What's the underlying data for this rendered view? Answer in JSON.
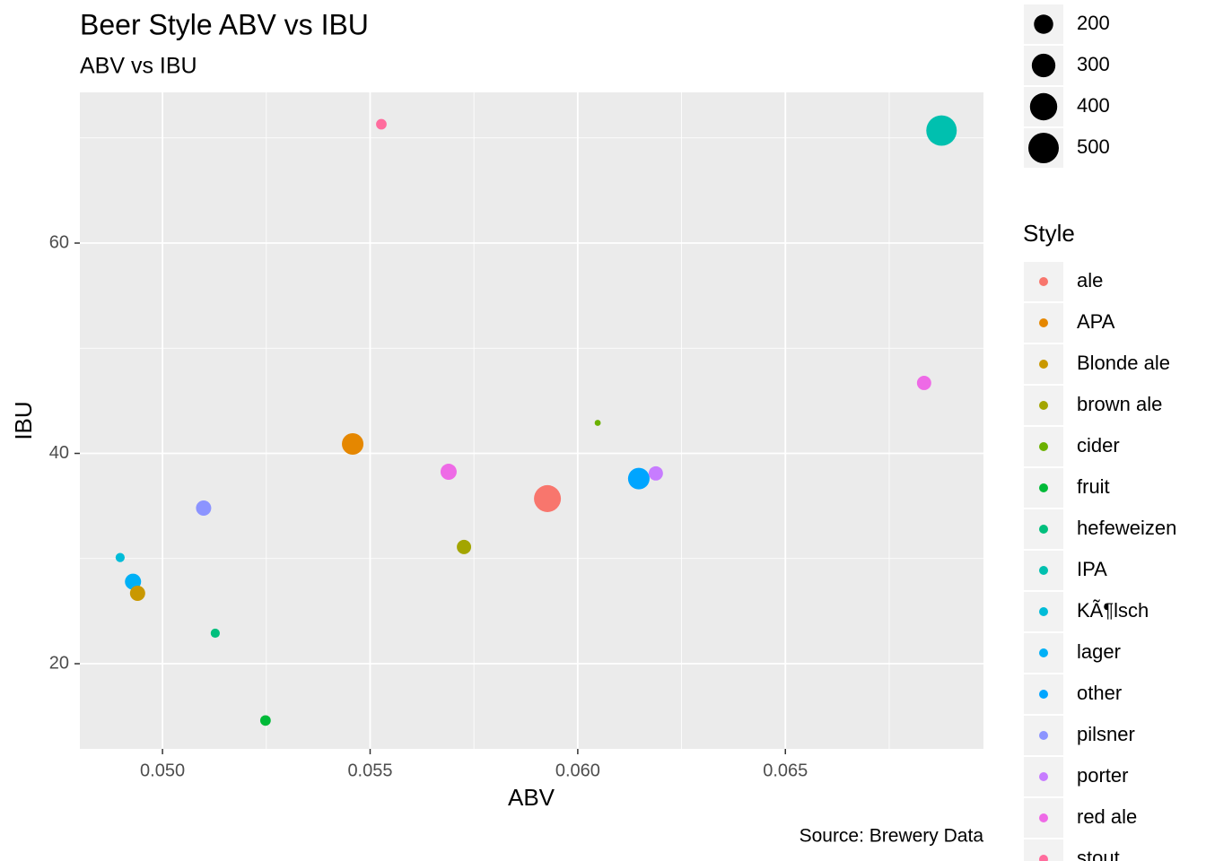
{
  "chart_data": {
    "type": "scatter",
    "title": "Beer Style ABV vs IBU",
    "subtitle": "ABV vs IBU",
    "caption": "Source: Brewery Data",
    "x_label": "ABV",
    "y_label": "IBU",
    "legend_title": "Style",
    "xlim": [
      0.04801,
      0.06977
    ],
    "ylim": [
      11.9,
      74.33
    ],
    "xticks": [
      {
        "value": 0.05,
        "label": "0.050"
      },
      {
        "value": 0.055,
        "label": "0.055"
      },
      {
        "value": 0.06,
        "label": "0.060"
      },
      {
        "value": 0.065,
        "label": "0.065"
      }
    ],
    "yticks": [
      20,
      40,
      60
    ],
    "xminorticks": [
      0.0525,
      0.0575,
      0.0625,
      0.0675
    ],
    "yminorticks": [
      30,
      50,
      70
    ],
    "grid": true,
    "legend": "right",
    "size_ticks": [
      200,
      300,
      400,
      500
    ],
    "series": [
      {
        "name": "ale",
        "color": "#F8766D",
        "x": [
          0.05927
        ],
        "y": [
          35.7
        ],
        "size": [
          390
        ]
      },
      {
        "name": "APA",
        "color": "#E58700",
        "x": [
          0.05458
        ],
        "y": [
          40.9
        ],
        "size": [
          250
        ]
      },
      {
        "name": "Blonde ale",
        "color": "#C99800",
        "x": [
          0.0494
        ],
        "y": [
          26.7
        ],
        "size": [
          125
        ]
      },
      {
        "name": "brown ale",
        "color": "#A3A500",
        "x": [
          0.05726
        ],
        "y": [
          31.1
        ],
        "size": [
          110
        ]
      },
      {
        "name": "cider",
        "color": "#6BB100",
        "x": [
          0.06048
        ],
        "y": [
          42.9
        ],
        "size": [
          20
        ]
      },
      {
        "name": "fruit",
        "color": "#00BA38",
        "x": [
          0.05248
        ],
        "y": [
          14.6
        ],
        "size": [
          60
        ]
      },
      {
        "name": "hefeweizen",
        "color": "#00BF7D",
        "x": [
          0.05127
        ],
        "y": [
          22.9
        ],
        "size": [
          45
        ]
      },
      {
        "name": "IPA",
        "color": "#00C0AF",
        "x": [
          0.06876
        ],
        "y": [
          70.7
        ],
        "size": [
          500
        ]
      },
      {
        "name": "KÃ¶lsch",
        "color": "#00BCD8",
        "x": [
          0.04898
        ],
        "y": [
          30.1
        ],
        "size": [
          45
        ]
      },
      {
        "name": "lager",
        "color": "#00B0F6",
        "x": [
          0.04929
        ],
        "y": [
          27.8
        ],
        "size": [
          140
        ]
      },
      {
        "name": "other",
        "color": "#00A5FF",
        "x": [
          0.06147
        ],
        "y": [
          37.6
        ],
        "size": [
          250
        ]
      },
      {
        "name": "pilsner",
        "color": "#8C94FF",
        "x": [
          0.05099
        ],
        "y": [
          34.8
        ],
        "size": [
          125
        ]
      },
      {
        "name": "porter",
        "color": "#C77CFF",
        "x": [
          0.06188
        ],
        "y": [
          38.1
        ],
        "size": [
          110
        ]
      },
      {
        "name": "red ale",
        "color": "#EE6AE6",
        "x": [
          0.06834,
          0.05689
        ],
        "y": [
          46.7,
          38.25
        ],
        "size": [
          110,
          140
        ]
      },
      {
        "name": "stout",
        "color": "#FF6C9D",
        "x": [
          0.05527
        ],
        "y": [
          71.3
        ],
        "size": [
          60
        ]
      }
    ]
  }
}
